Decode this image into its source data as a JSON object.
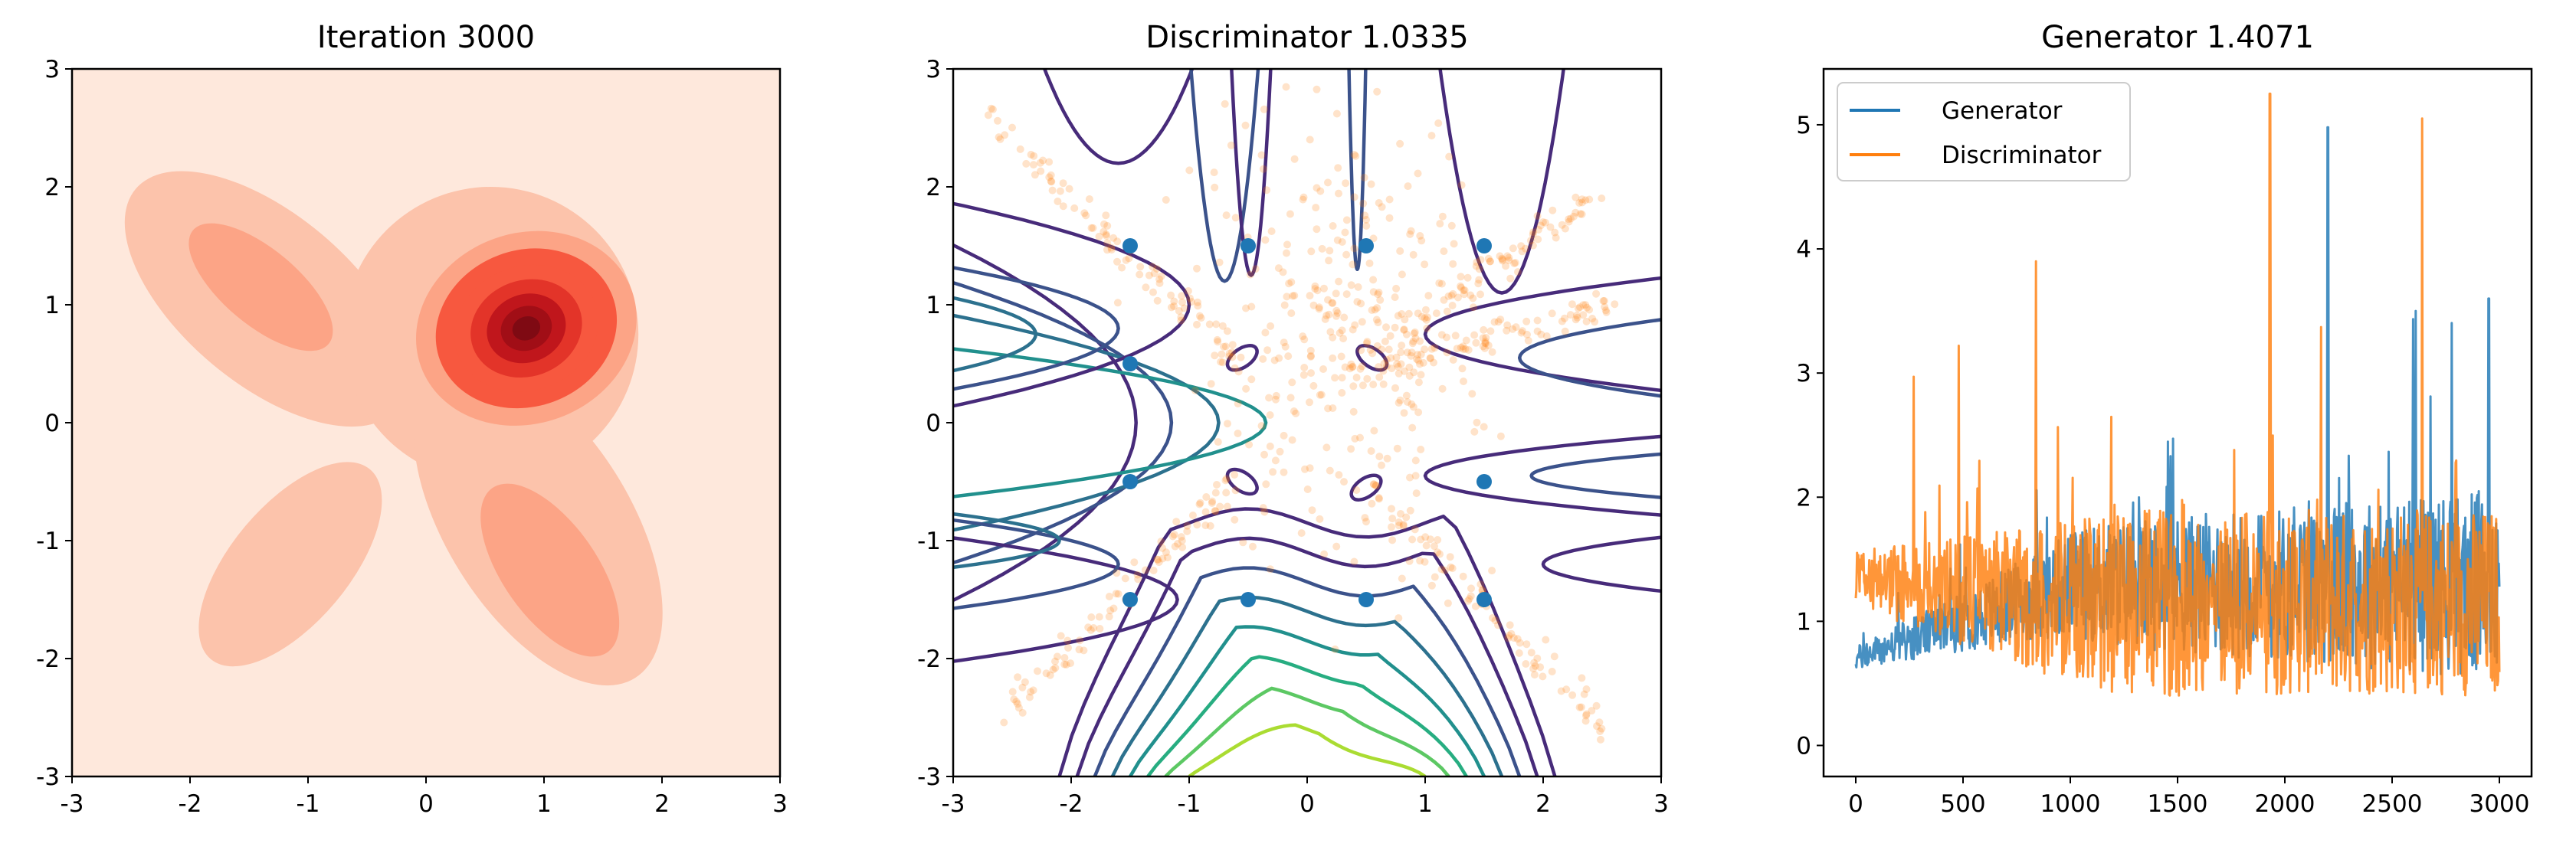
{
  "chart_data": [
    {
      "type": "heatmap",
      "title": "Iteration 3000",
      "xlim": [
        -3,
        3
      ],
      "ylim": [
        -3,
        3
      ],
      "xticks": [
        "-3",
        "-2",
        "-1",
        "0",
        "1",
        "2",
        "3"
      ],
      "yticks": [
        "3",
        "2",
        "1",
        "0",
        "-1",
        "-2",
        "-3"
      ],
      "colormap": [
        "#fee8dc",
        "#fcc3ab",
        "#fca486",
        "#f7583f",
        "#e33429",
        "#c0161c",
        "#a10e16"
      ],
      "density_blobs": [
        {
          "x": 0.85,
          "y": 0.8,
          "height": 1.0
        },
        {
          "x": -1.4,
          "y": 1.2,
          "height": 0.3
        },
        {
          "x": 1.0,
          "y": -1.2,
          "height": 0.3
        },
        {
          "x": -1.1,
          "y": -1.3,
          "height": 0.2
        }
      ]
    },
    {
      "type": "scatter",
      "title": "Discriminator 1.0335",
      "xlim": [
        -3,
        3
      ],
      "ylim": [
        -3,
        3
      ],
      "xticks": [
        "-3",
        "-2",
        "-1",
        "0",
        "1",
        "2",
        "3"
      ],
      "yticks": [
        "3",
        "2",
        "1",
        "0",
        "-1",
        "-2",
        "-3"
      ],
      "real_points": [
        [
          -1.5,
          1.5
        ],
        [
          -0.5,
          1.5
        ],
        [
          0.5,
          1.5
        ],
        [
          1.5,
          1.5
        ],
        [
          -1.5,
          0.5
        ],
        [
          -1.5,
          -0.5
        ],
        [
          -0.5,
          -1.5
        ],
        [
          0.5,
          -1.5
        ],
        [
          -1.5,
          -1.5
        ],
        [
          1.5,
          -1.5
        ],
        [
          1.5,
          -0.5
        ]
      ],
      "real_color": "#1f77b4",
      "fake_color": "#ff7f0e",
      "contour_colors": [
        "#472b7a",
        "#3b528b",
        "#2c718e",
        "#21908d",
        "#27ad81",
        "#5cc863",
        "#aadc32"
      ]
    },
    {
      "type": "line",
      "title": "Generator 1.4071",
      "xlim": [
        -150,
        3150
      ],
      "ylim": [
        -0.25,
        5.45
      ],
      "xticks": [
        "0",
        "500",
        "1000",
        "1500",
        "2000",
        "2500",
        "3000"
      ],
      "yticks": [
        "0",
        "1",
        "2",
        "3",
        "4",
        "5"
      ],
      "legend": "top-left",
      "series": [
        {
          "name": "Generator",
          "color": "#1f77b4",
          "start": 0.7,
          "end_mean": 1.3,
          "spread": 0.55,
          "spikes": [
            [
              2200,
              4.98
            ],
            [
              2950,
              3.6
            ],
            [
              2610,
              3.5
            ]
          ]
        },
        {
          "name": "Discriminator",
          "color": "#ff7f0e",
          "start": 1.35,
          "end_mean": 1.15,
          "spread": 0.75,
          "spikes": [
            [
              1930,
              5.25
            ],
            [
              2640,
              5.05
            ],
            [
              840,
              3.9
            ],
            [
              480,
              3.22
            ],
            [
              270,
              2.97
            ]
          ]
        }
      ]
    }
  ]
}
